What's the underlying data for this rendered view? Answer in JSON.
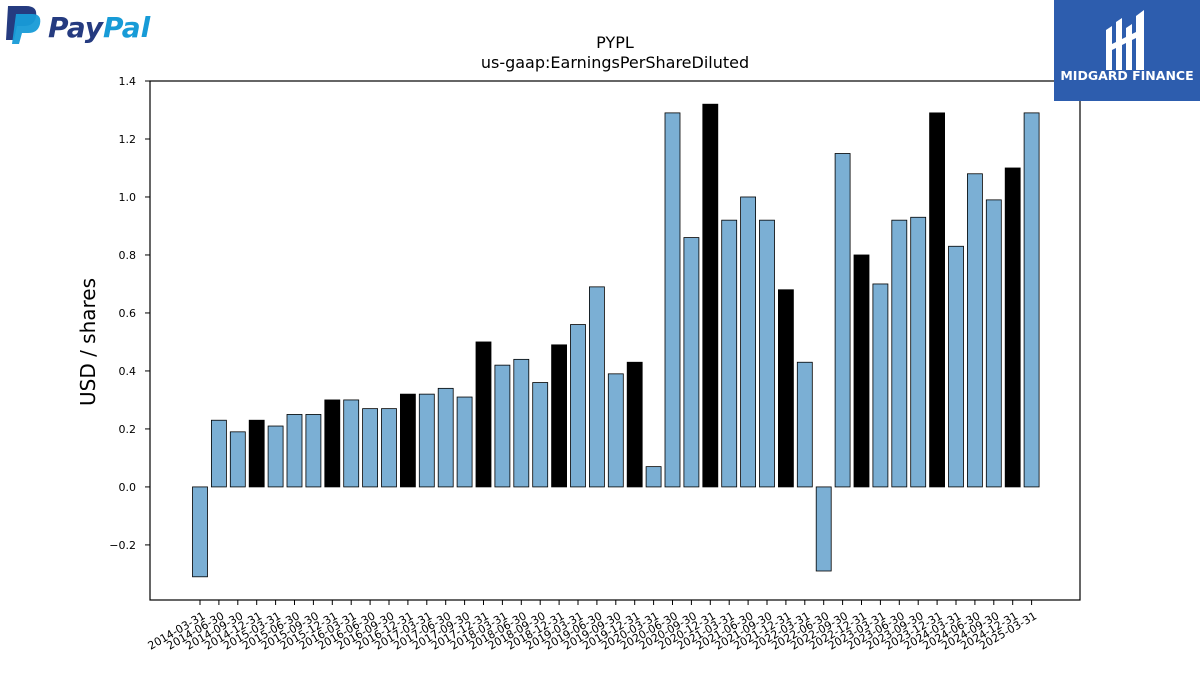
{
  "logos": {
    "left": {
      "wordmark_part1": "Pay",
      "wordmark_part2": "Pal",
      "icon": "paypal-p-icon",
      "color_dark": "#253B80",
      "color_light": "#179BD7"
    },
    "right": {
      "text": "MIDGARD FINANCE",
      "icon": "midgard-m-icon",
      "background": "#2D5DAE"
    }
  },
  "colors": {
    "bar_default": "#7BAFD4",
    "bar_q4": "#000000",
    "bar_edge": "#000000"
  },
  "chart_data": {
    "type": "bar",
    "title": "PYPL",
    "subtitle": "us-gaap:EarningsPerShareDiluted",
    "xlabel": "",
    "ylabel": "USD / shares",
    "ylim": [
      -0.39,
      1.4
    ],
    "yticks": [
      -0.2,
      0.0,
      0.2,
      0.4,
      0.6,
      0.8,
      1.0,
      1.2,
      1.4
    ],
    "ytick_labels": [
      "−0.2",
      "0.0",
      "0.2",
      "0.4",
      "0.6",
      "0.8",
      "1.0",
      "1.2",
      "1.4"
    ],
    "grid": false,
    "categories": [
      "2014-03-31",
      "2014-06-30",
      "2014-09-30",
      "2014-12-31",
      "2015-03-31",
      "2015-06-30",
      "2015-09-30",
      "2015-12-31",
      "2016-03-31",
      "2016-06-30",
      "2016-09-30",
      "2016-12-31",
      "2017-03-31",
      "2017-06-30",
      "2017-09-30",
      "2017-12-31",
      "2018-03-31",
      "2018-06-30",
      "2018-09-30",
      "2018-12-31",
      "2019-03-31",
      "2019-06-30",
      "2019-09-30",
      "2019-12-31",
      "2020-03-31",
      "2020-06-30",
      "2020-09-30",
      "2020-12-31",
      "2021-03-31",
      "2021-06-30",
      "2021-09-30",
      "2021-12-31",
      "2022-03-31",
      "2022-06-30",
      "2022-09-30",
      "2022-12-31",
      "2023-03-31",
      "2023-06-30",
      "2023-09-30",
      "2023-12-31",
      "2024-03-31",
      "2024-06-30",
      "2024-09-30",
      "2024-12-31",
      "2025-03-31"
    ],
    "values": [
      -0.31,
      0.23,
      0.19,
      0.23,
      0.21,
      0.25,
      0.25,
      0.3,
      0.3,
      0.27,
      0.27,
      0.32,
      0.32,
      0.34,
      0.31,
      0.5,
      0.42,
      0.44,
      0.36,
      0.49,
      0.56,
      0.69,
      0.39,
      0.43,
      0.07,
      1.29,
      0.86,
      1.32,
      0.92,
      1.0,
      0.92,
      0.68,
      0.43,
      -0.29,
      1.15,
      0.8,
      0.7,
      0.92,
      0.93,
      1.29,
      0.83,
      1.08,
      0.99,
      1.1,
      1.29
    ],
    "highlight": [
      false,
      false,
      false,
      true,
      false,
      false,
      false,
      true,
      false,
      false,
      false,
      true,
      false,
      false,
      false,
      true,
      false,
      false,
      false,
      true,
      false,
      false,
      false,
      true,
      false,
      false,
      false,
      true,
      false,
      false,
      false,
      true,
      false,
      false,
      false,
      true,
      false,
      false,
      false,
      true,
      false,
      false,
      false,
      true,
      false
    ]
  }
}
